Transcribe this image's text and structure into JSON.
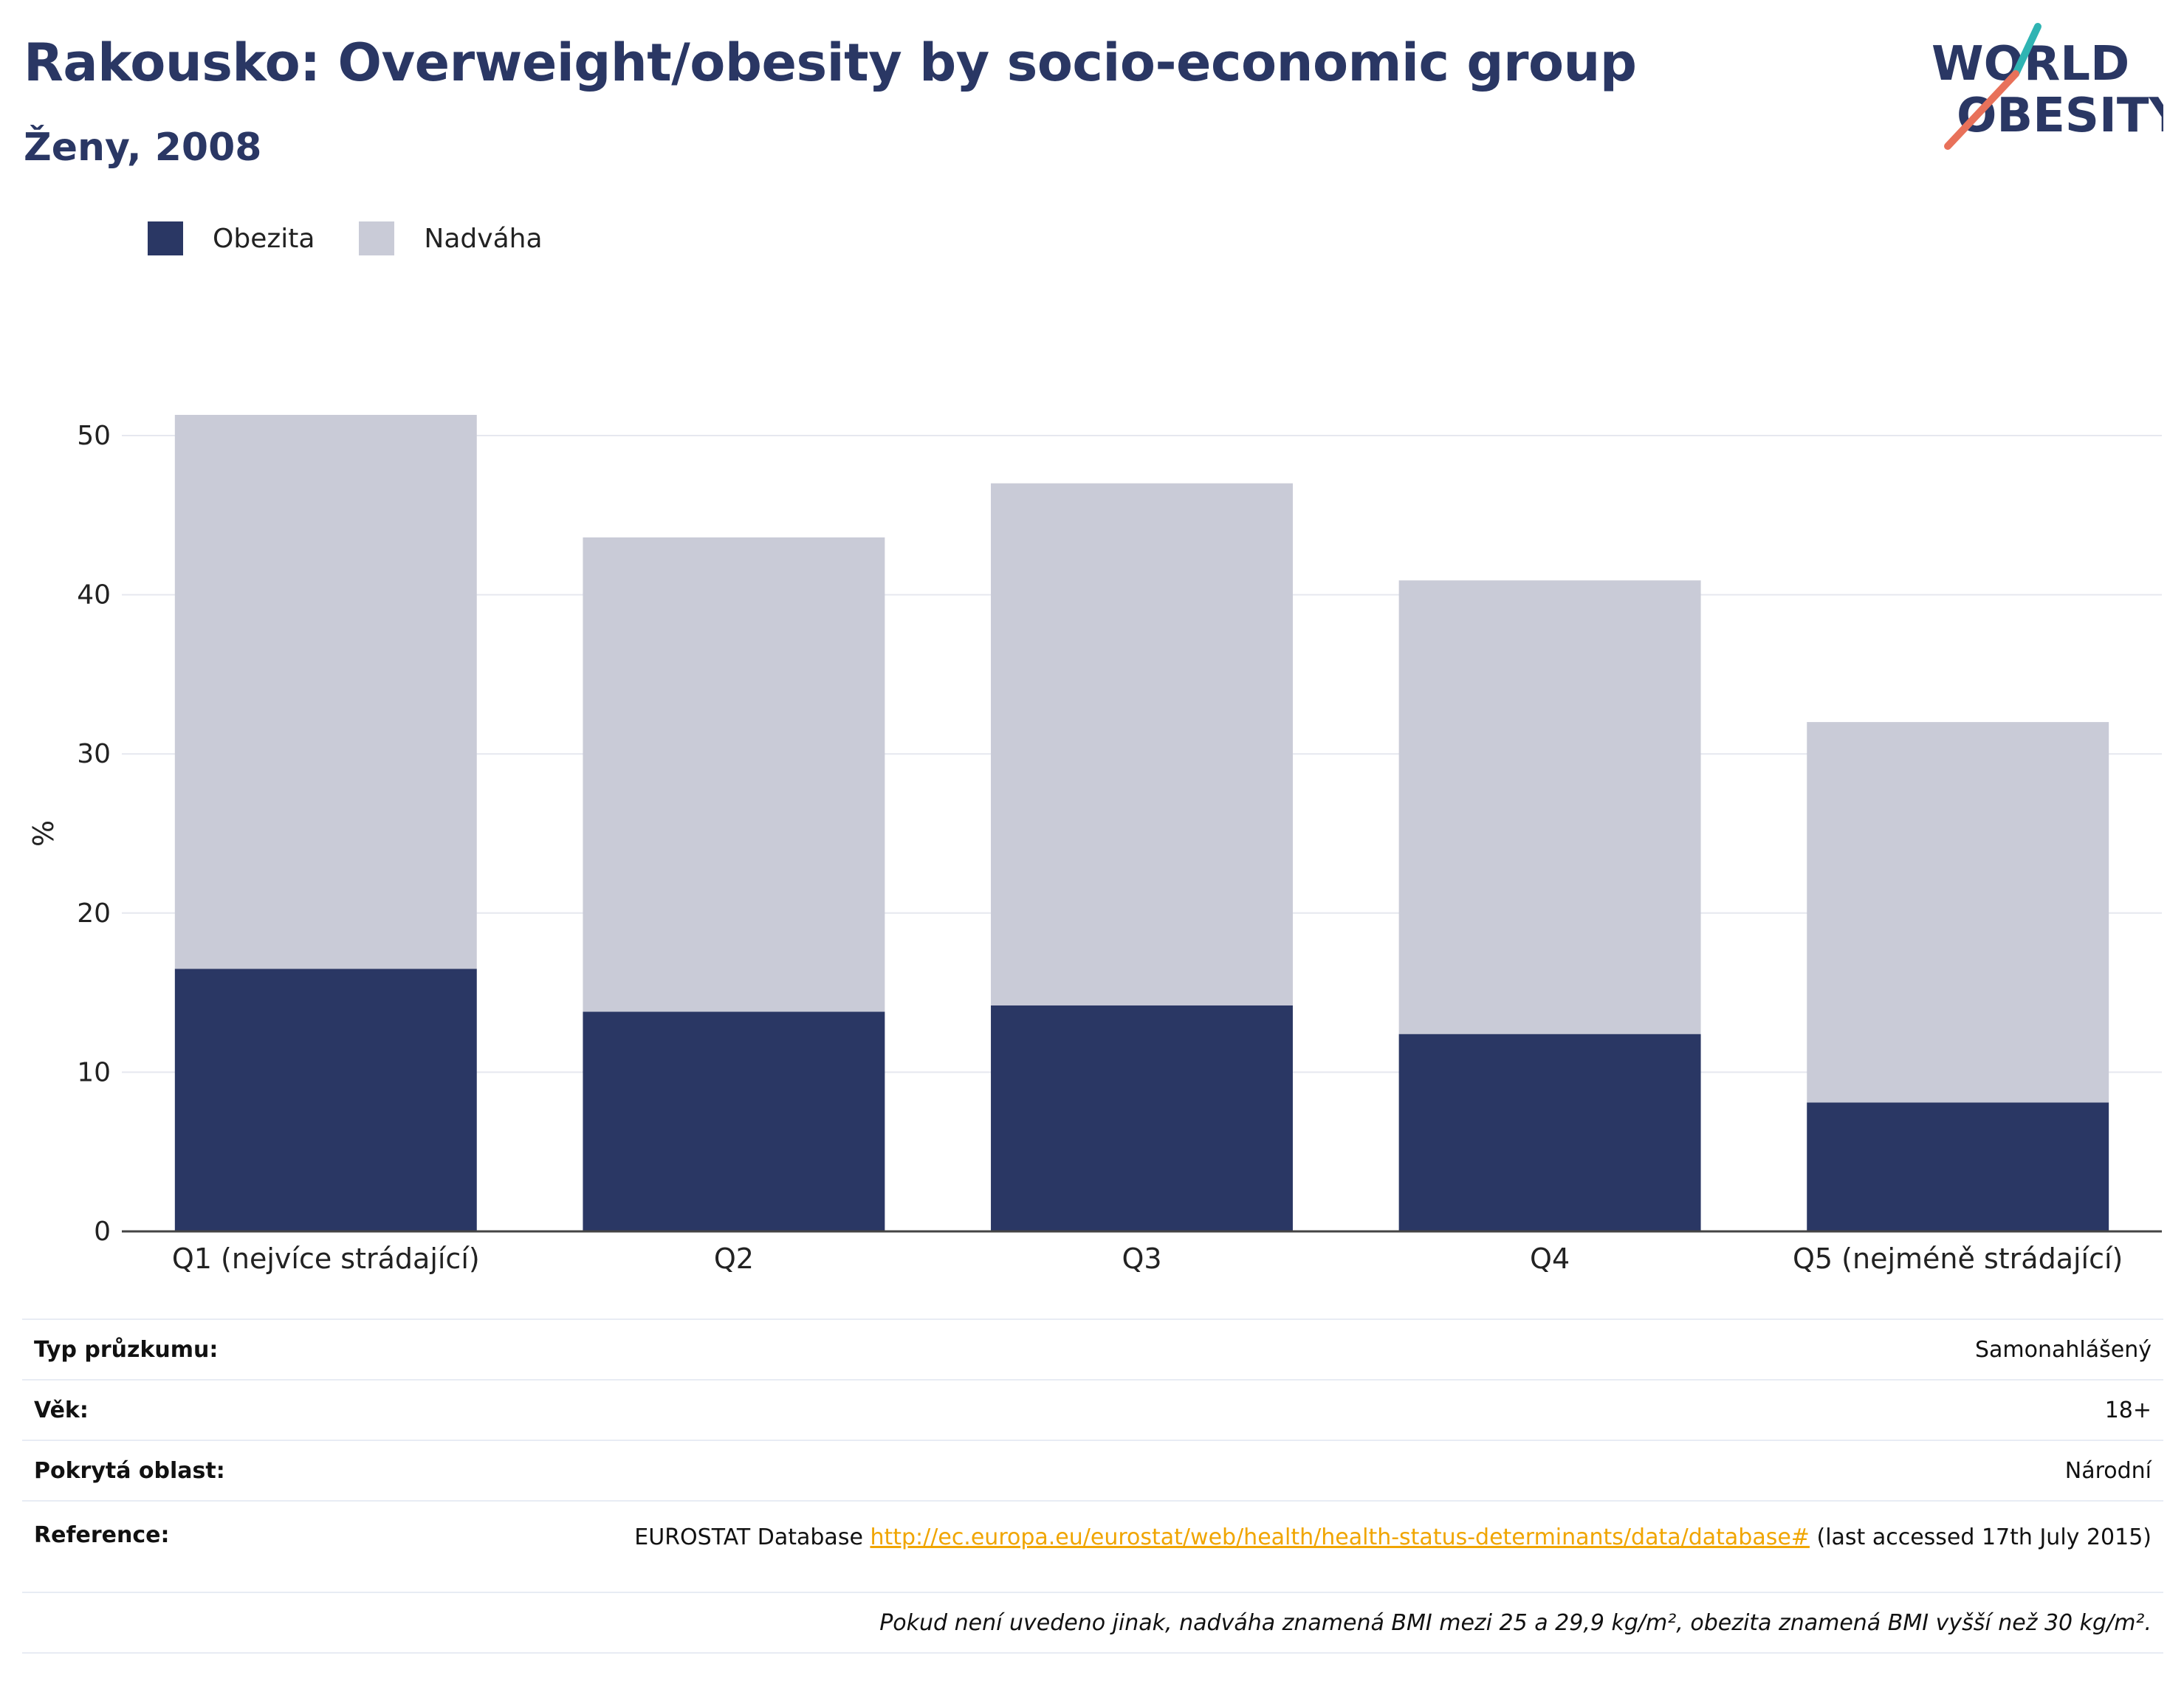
{
  "title": "Rakousko: Overweight/obesity by socio-economic group",
  "subtitle": "Ženy, 2008",
  "logo": {
    "line1": "WORLD",
    "line2": "OBESITY"
  },
  "legend": [
    {
      "label": "Obezita",
      "color": "#2a3764"
    },
    {
      "label": "Nadváha",
      "color": "#c9cbd7"
    }
  ],
  "chart_data": {
    "type": "bar",
    "stacked": true,
    "categories": [
      "Q1 (nejvíce strádající)",
      "Q2",
      "Q3",
      "Q4",
      "Q5 (nejméně strádající)"
    ],
    "series": [
      {
        "name": "Obezita",
        "color": "#2a3764",
        "values": [
          16.5,
          13.8,
          14.2,
          12.4,
          8.1
        ]
      },
      {
        "name": "Nadváha",
        "color": "#c9cbd7",
        "values": [
          34.8,
          29.8,
          32.8,
          28.5,
          23.9
        ]
      }
    ],
    "ylabel": "%",
    "ylim": [
      0,
      55
    ],
    "yticks": [
      0,
      10,
      20,
      30,
      40,
      50
    ],
    "grid": true,
    "legend_position": "top-left"
  },
  "details": {
    "survey_label": "Typ průzkumu:",
    "survey_value": "Samonahlášený",
    "age_label": "Věk:",
    "age_value": "18+",
    "area_label": "Pokrytá oblast:",
    "area_value": "Národní",
    "ref_label": "Reference:",
    "ref_prefix": "EUROSTAT Database ",
    "ref_link": "http://ec.europa.eu/eurostat/web/health/health-status-determinants/data/database#",
    "ref_suffix": " (last accessed 17th July 2015)",
    "note": "Pokud není uvedeno jinak, nadváha znamená BMI mezi 25 a 29,9 kg/m², obezita znamená BMI vyšší než 30 kg/m²."
  }
}
